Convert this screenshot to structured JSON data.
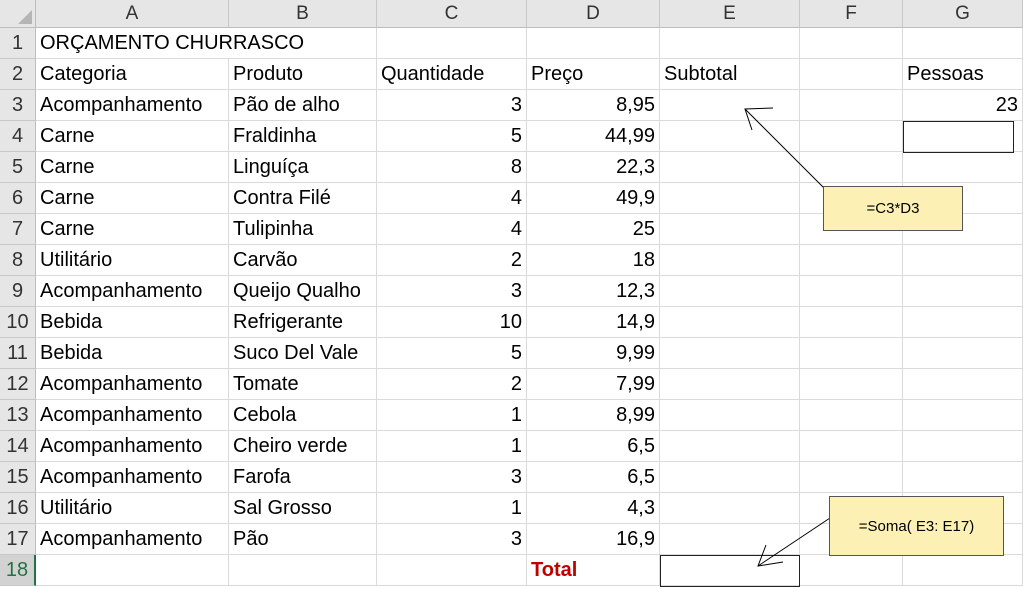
{
  "columns": [
    "A",
    "B",
    "C",
    "D",
    "E",
    "F",
    "G"
  ],
  "rows": [
    {
      "num": "1",
      "A": "ORÇAMENTO CHURRASCO",
      "B": "",
      "C": "",
      "D": "",
      "E": "",
      "F": "",
      "G": ""
    },
    {
      "num": "2",
      "A": "Categoria",
      "B": "Produto",
      "C": "Quantidade",
      "D": "Preço",
      "E": "Subtotal",
      "F": "",
      "G": "Pessoas"
    },
    {
      "num": "3",
      "A": "Acompanhamento",
      "B": "Pão de alho",
      "C": "3",
      "D": "8,95",
      "E": "",
      "F": "",
      "G": "23"
    },
    {
      "num": "4",
      "A": "Carne",
      "B": "Fraldinha",
      "C": "5",
      "D": "44,99",
      "E": "",
      "F": "",
      "G": ""
    },
    {
      "num": "5",
      "A": "Carne",
      "B": "Linguíça",
      "C": "8",
      "D": "22,3",
      "E": "",
      "F": "",
      "G": ""
    },
    {
      "num": "6",
      "A": "Carne",
      "B": "Contra Filé",
      "C": "4",
      "D": "49,9",
      "E": "",
      "F": "",
      "G": ""
    },
    {
      "num": "7",
      "A": "Carne",
      "B": "Tulipinha",
      "C": "4",
      "D": "25",
      "E": "",
      "F": "",
      "G": ""
    },
    {
      "num": "8",
      "A": "Utilitário",
      "B": "Carvão",
      "C": "2",
      "D": "18",
      "E": "",
      "F": "",
      "G": ""
    },
    {
      "num": "9",
      "A": "Acompanhamento",
      "B": "Queijo Qualho",
      "C": "3",
      "D": "12,3",
      "E": "",
      "F": "",
      "G": ""
    },
    {
      "num": "10",
      "A": "Bebida",
      "B": "Refrigerante",
      "C": "10",
      "D": "14,9",
      "E": "",
      "F": "",
      "G": ""
    },
    {
      "num": "11",
      "A": "Bebida",
      "B": "Suco Del Vale",
      "C": "5",
      "D": "9,99",
      "E": "",
      "F": "",
      "G": ""
    },
    {
      "num": "12",
      "A": "Acompanhamento",
      "B": "Tomate",
      "C": "2",
      "D": "7,99",
      "E": "",
      "F": "",
      "G": ""
    },
    {
      "num": "13",
      "A": "Acompanhamento",
      "B": "Cebola",
      "C": "1",
      "D": "8,99",
      "E": "",
      "F": "",
      "G": ""
    },
    {
      "num": "14",
      "A": "Acompanhamento",
      "B": "Cheiro verde",
      "C": "1",
      "D": "6,5",
      "E": "",
      "F": "",
      "G": ""
    },
    {
      "num": "15",
      "A": "Acompanhamento",
      "B": "Farofa",
      "C": "3",
      "D": "6,5",
      "E": "",
      "F": "",
      "G": ""
    },
    {
      "num": "16",
      "A": "Utilitário",
      "B": "Sal Grosso",
      "C": "1",
      "D": "4,3",
      "E": "",
      "F": "",
      "G": ""
    },
    {
      "num": "17",
      "A": "Acompanhamento",
      "B": "Pão",
      "C": "3",
      "D": "16,9",
      "E": "",
      "F": "",
      "G": ""
    },
    {
      "num": "18",
      "A": "",
      "B": "",
      "C": "",
      "D": "Total",
      "E": "",
      "F": "",
      "G": ""
    }
  ],
  "selected_row": "18",
  "notes": {
    "subtotal_formula": "=C3*D3",
    "total_formula": "=Soma( E3: E17)"
  },
  "colors": {
    "header_bg": "#e6e6e6",
    "selected_row_accent": "#217346",
    "total_label": "#c00000",
    "note_bg": "#fdf0b4"
  }
}
